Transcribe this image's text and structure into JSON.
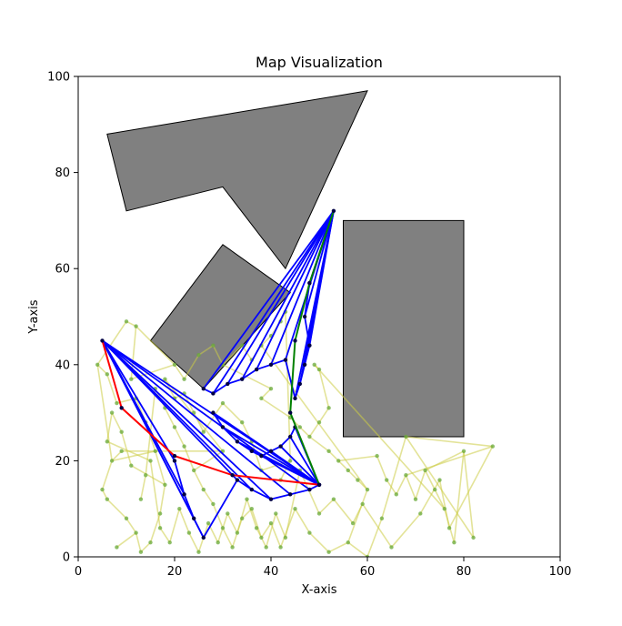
{
  "chart_data": {
    "type": "scatter",
    "title": "Map Visualization",
    "xlabel": "X-axis",
    "ylabel": "Y-axis",
    "xlim": [
      0,
      100
    ],
    "ylim": [
      0,
      100
    ],
    "xticks": [
      0,
      20,
      40,
      60,
      80,
      100
    ],
    "yticks": [
      0,
      20,
      40,
      60,
      80,
      100
    ],
    "grid": false,
    "colors": {
      "obstacle_fill": "#808080",
      "obstacle_edge": "#000000",
      "tree_edge": "#cccc44",
      "tree_node": "#6aaa3a",
      "robot_links": "#0000ff",
      "path": "#ff0000",
      "goal_path": "#008000",
      "joint": "#000044"
    },
    "obstacles": [
      {
        "name": "arrow-polygon",
        "points": [
          [
            6,
            88
          ],
          [
            60,
            97
          ],
          [
            43,
            60
          ],
          [
            30,
            77
          ],
          [
            10,
            72
          ]
        ]
      },
      {
        "name": "tilted-rectangle",
        "points": [
          [
            15,
            45
          ],
          [
            30,
            65
          ],
          [
            44,
            55
          ],
          [
            26,
            35
          ]
        ]
      },
      {
        "name": "rectangle",
        "points": [
          [
            55,
            25
          ],
          [
            80,
            25
          ],
          [
            80,
            70
          ],
          [
            55,
            70
          ]
        ]
      }
    ],
    "path": [
      [
        5,
        45
      ],
      [
        9,
        31
      ],
      [
        20,
        21
      ],
      [
        32,
        17
      ],
      [
        50,
        15
      ]
    ],
    "goal_path": [
      [
        50,
        15
      ],
      [
        44,
        30
      ],
      [
        45,
        45
      ],
      [
        48,
        57
      ],
      [
        53,
        72
      ]
    ],
    "sweep_lower": {
      "base": [
        5,
        45
      ],
      "tips": [
        [
          20,
          20
        ],
        [
          22,
          13
        ],
        [
          24,
          8
        ],
        [
          26,
          4
        ],
        [
          33,
          16
        ],
        [
          36,
          14
        ],
        [
          40,
          12
        ],
        [
          44,
          13
        ],
        [
          48,
          14
        ],
        [
          50,
          15
        ]
      ]
    },
    "sweep_mid": {
      "base": [
        50,
        15
      ],
      "tips": [
        [
          28,
          30
        ],
        [
          30,
          27
        ],
        [
          33,
          24
        ],
        [
          36,
          22
        ],
        [
          38,
          21
        ],
        [
          40,
          22
        ],
        [
          42,
          23
        ],
        [
          44,
          25
        ],
        [
          45,
          27
        ]
      ]
    },
    "sweep_upper": {
      "base": [
        53,
        72
      ],
      "tips": [
        [
          26,
          35
        ],
        [
          28,
          34
        ],
        [
          31,
          36
        ],
        [
          34,
          37
        ],
        [
          37,
          39
        ],
        [
          40,
          40
        ],
        [
          43,
          41
        ],
        [
          45,
          33
        ],
        [
          46,
          36
        ],
        [
          47,
          40
        ],
        [
          48,
          44
        ],
        [
          47,
          50
        ],
        [
          48,
          57
        ]
      ]
    },
    "tree_nodes": [
      [
        4,
        40
      ],
      [
        10,
        49
      ],
      [
        12,
        48
      ],
      [
        6,
        38
      ],
      [
        8,
        32
      ],
      [
        7,
        20
      ],
      [
        9,
        22
      ],
      [
        5,
        14
      ],
      [
        6,
        12
      ],
      [
        10,
        8
      ],
      [
        12,
        5
      ],
      [
        8,
        2
      ],
      [
        13,
        1
      ],
      [
        15,
        3
      ],
      [
        17,
        9
      ],
      [
        18,
        15
      ],
      [
        16,
        22
      ],
      [
        14,
        28
      ],
      [
        12,
        33
      ],
      [
        11,
        37
      ],
      [
        20,
        40
      ],
      [
        22,
        37
      ],
      [
        25,
        42
      ],
      [
        28,
        44
      ],
      [
        30,
        40
      ],
      [
        34,
        44
      ],
      [
        36,
        41
      ],
      [
        38,
        44
      ],
      [
        40,
        46
      ],
      [
        42,
        49
      ],
      [
        43,
        51
      ],
      [
        40,
        35
      ],
      [
        38,
        33
      ],
      [
        44,
        29
      ],
      [
        46,
        27
      ],
      [
        48,
        25
      ],
      [
        50,
        28
      ],
      [
        52,
        31
      ],
      [
        50,
        39
      ],
      [
        49,
        40
      ],
      [
        52,
        22
      ],
      [
        54,
        20
      ],
      [
        56,
        18
      ],
      [
        58,
        16
      ],
      [
        60,
        14
      ],
      [
        62,
        21
      ],
      [
        64,
        16
      ],
      [
        66,
        13
      ],
      [
        68,
        17
      ],
      [
        70,
        12
      ],
      [
        72,
        18
      ],
      [
        74,
        14
      ],
      [
        76,
        10
      ],
      [
        78,
        3
      ],
      [
        80,
        22
      ],
      [
        82,
        4
      ],
      [
        86,
        23
      ],
      [
        68,
        25
      ],
      [
        63,
        8
      ],
      [
        60,
        0
      ],
      [
        56,
        3
      ],
      [
        52,
        1
      ],
      [
        48,
        5
      ],
      [
        45,
        10
      ],
      [
        42,
        2
      ],
      [
        40,
        7
      ],
      [
        38,
        4
      ],
      [
        36,
        10
      ],
      [
        34,
        8
      ],
      [
        32,
        2
      ],
      [
        30,
        6
      ],
      [
        28,
        11
      ],
      [
        26,
        14
      ],
      [
        24,
        18
      ],
      [
        22,
        23
      ],
      [
        20,
        27
      ],
      [
        18,
        31
      ],
      [
        16,
        35
      ],
      [
        14,
        17
      ],
      [
        13,
        12
      ],
      [
        11,
        19
      ],
      [
        9,
        26
      ],
      [
        7,
        30
      ],
      [
        6,
        24
      ],
      [
        15,
        20
      ],
      [
        17,
        6
      ],
      [
        19,
        3
      ],
      [
        21,
        10
      ],
      [
        23,
        5
      ],
      [
        25,
        1
      ],
      [
        27,
        7
      ],
      [
        29,
        3
      ],
      [
        31,
        9
      ],
      [
        33,
        5
      ],
      [
        35,
        12
      ],
      [
        37,
        6
      ],
      [
        39,
        2
      ],
      [
        41,
        9
      ],
      [
        43,
        4
      ],
      [
        46,
        18
      ],
      [
        50,
        9
      ],
      [
        53,
        12
      ],
      [
        57,
        7
      ],
      [
        59,
        11
      ],
      [
        65,
        2
      ],
      [
        71,
        9
      ],
      [
        75,
        16
      ],
      [
        77,
        6
      ],
      [
        42,
        16
      ],
      [
        44,
        20
      ],
      [
        38,
        18
      ],
      [
        36,
        24
      ],
      [
        34,
        28
      ],
      [
        30,
        32
      ],
      [
        26,
        26
      ],
      [
        24,
        30
      ],
      [
        22,
        34
      ],
      [
        20,
        33
      ],
      [
        18,
        37
      ],
      [
        30,
        22
      ]
    ],
    "tree_edges": [
      [
        0,
        1
      ],
      [
        0,
        3
      ],
      [
        3,
        4
      ],
      [
        4,
        18
      ],
      [
        18,
        17
      ],
      [
        17,
        16
      ],
      [
        16,
        5
      ],
      [
        5,
        6
      ],
      [
        5,
        7
      ],
      [
        7,
        8
      ],
      [
        8,
        9
      ],
      [
        9,
        10
      ],
      [
        10,
        11
      ],
      [
        10,
        12
      ],
      [
        12,
        13
      ],
      [
        13,
        14
      ],
      [
        14,
        15
      ],
      [
        15,
        16
      ],
      [
        1,
        2
      ],
      [
        2,
        19
      ],
      [
        19,
        20
      ],
      [
        20,
        21
      ],
      [
        21,
        22
      ],
      [
        22,
        23
      ],
      [
        23,
        24
      ],
      [
        24,
        25
      ],
      [
        25,
        26
      ],
      [
        26,
        27
      ],
      [
        27,
        28
      ],
      [
        28,
        29
      ],
      [
        29,
        30
      ],
      [
        24,
        31
      ],
      [
        31,
        32
      ],
      [
        32,
        33
      ],
      [
        33,
        34
      ],
      [
        34,
        35
      ],
      [
        35,
        36
      ],
      [
        36,
        37
      ],
      [
        37,
        38
      ],
      [
        38,
        39
      ],
      [
        35,
        40
      ],
      [
        40,
        41
      ],
      [
        41,
        42
      ],
      [
        42,
        43
      ],
      [
        43,
        44
      ],
      [
        41,
        45
      ],
      [
        45,
        46
      ],
      [
        46,
        47
      ],
      [
        47,
        48
      ],
      [
        48,
        49
      ],
      [
        49,
        50
      ],
      [
        50,
        51
      ],
      [
        51,
        52
      ],
      [
        52,
        53
      ],
      [
        50,
        54
      ],
      [
        54,
        55
      ],
      [
        48,
        56
      ],
      [
        56,
        57
      ],
      [
        57,
        58
      ],
      [
        58,
        59
      ],
      [
        59,
        60
      ],
      [
        60,
        61
      ],
      [
        61,
        62
      ],
      [
        62,
        63
      ],
      [
        63,
        64
      ],
      [
        64,
        65
      ],
      [
        65,
        66
      ],
      [
        66,
        67
      ],
      [
        67,
        68
      ],
      [
        68,
        69
      ],
      [
        69,
        70
      ],
      [
        70,
        71
      ],
      [
        71,
        72
      ],
      [
        72,
        73
      ],
      [
        73,
        74
      ],
      [
        74,
        75
      ],
      [
        75,
        76
      ],
      [
        76,
        77
      ],
      [
        77,
        78
      ],
      [
        78,
        79
      ],
      [
        15,
        80
      ],
      [
        80,
        81
      ],
      [
        81,
        82
      ],
      [
        82,
        83
      ],
      [
        83,
        84
      ],
      [
        84,
        85
      ],
      [
        85,
        86
      ],
      [
        86,
        87
      ],
      [
        87,
        88
      ],
      [
        88,
        89
      ],
      [
        89,
        90
      ],
      [
        90,
        91
      ],
      [
        91,
        92
      ],
      [
        92,
        93
      ],
      [
        93,
        94
      ],
      [
        94,
        95
      ],
      [
        95,
        96
      ],
      [
        96,
        97
      ],
      [
        97,
        98
      ],
      [
        98,
        99
      ],
      [
        99,
        100
      ],
      [
        100,
        101
      ],
      [
        101,
        102
      ],
      [
        102,
        103
      ],
      [
        103,
        104
      ],
      [
        104,
        105
      ],
      [
        105,
        106
      ],
      [
        106,
        107
      ],
      [
        108,
        109
      ],
      [
        109,
        110
      ],
      [
        110,
        111
      ],
      [
        111,
        112
      ],
      [
        112,
        113
      ],
      [
        113,
        114
      ],
      [
        114,
        115
      ],
      [
        115,
        116
      ],
      [
        116,
        117
      ],
      [
        117,
        118
      ],
      [
        118,
        119
      ],
      [
        119,
        73
      ],
      [
        0,
        5
      ],
      [
        2,
        20
      ],
      [
        6,
        119
      ],
      [
        30,
        109
      ],
      [
        39,
        52
      ],
      [
        44,
        60
      ],
      [
        53,
        54
      ],
      [
        55,
        57
      ],
      [
        107,
        56
      ],
      [
        27,
        44
      ]
    ]
  }
}
